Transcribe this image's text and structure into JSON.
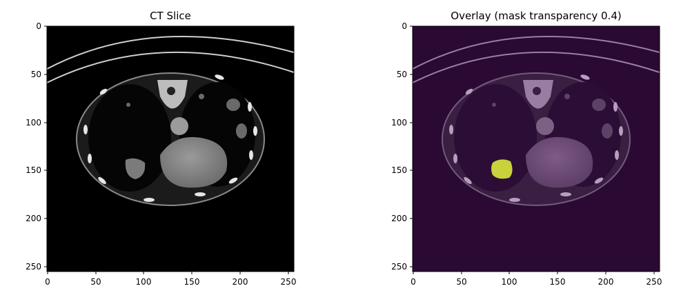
{
  "figure": {
    "panels": [
      {
        "title": "CT Slice",
        "x_ticks": [
          "0",
          "50",
          "100",
          "150",
          "200",
          "250"
        ],
        "y_ticks": [
          "0",
          "50",
          "100",
          "150",
          "200",
          "250"
        ],
        "background": "#000000",
        "tint": "gray"
      },
      {
        "title": "Overlay (mask transparency 0.4)",
        "x_ticks": [
          "0",
          "50",
          "100",
          "150",
          "200",
          "250"
        ],
        "y_ticks": [
          "0",
          "50",
          "100",
          "150",
          "200",
          "250"
        ],
        "background": "#2a0a33",
        "tint": "purple",
        "mask_color": "#c9d13b"
      }
    ]
  }
}
